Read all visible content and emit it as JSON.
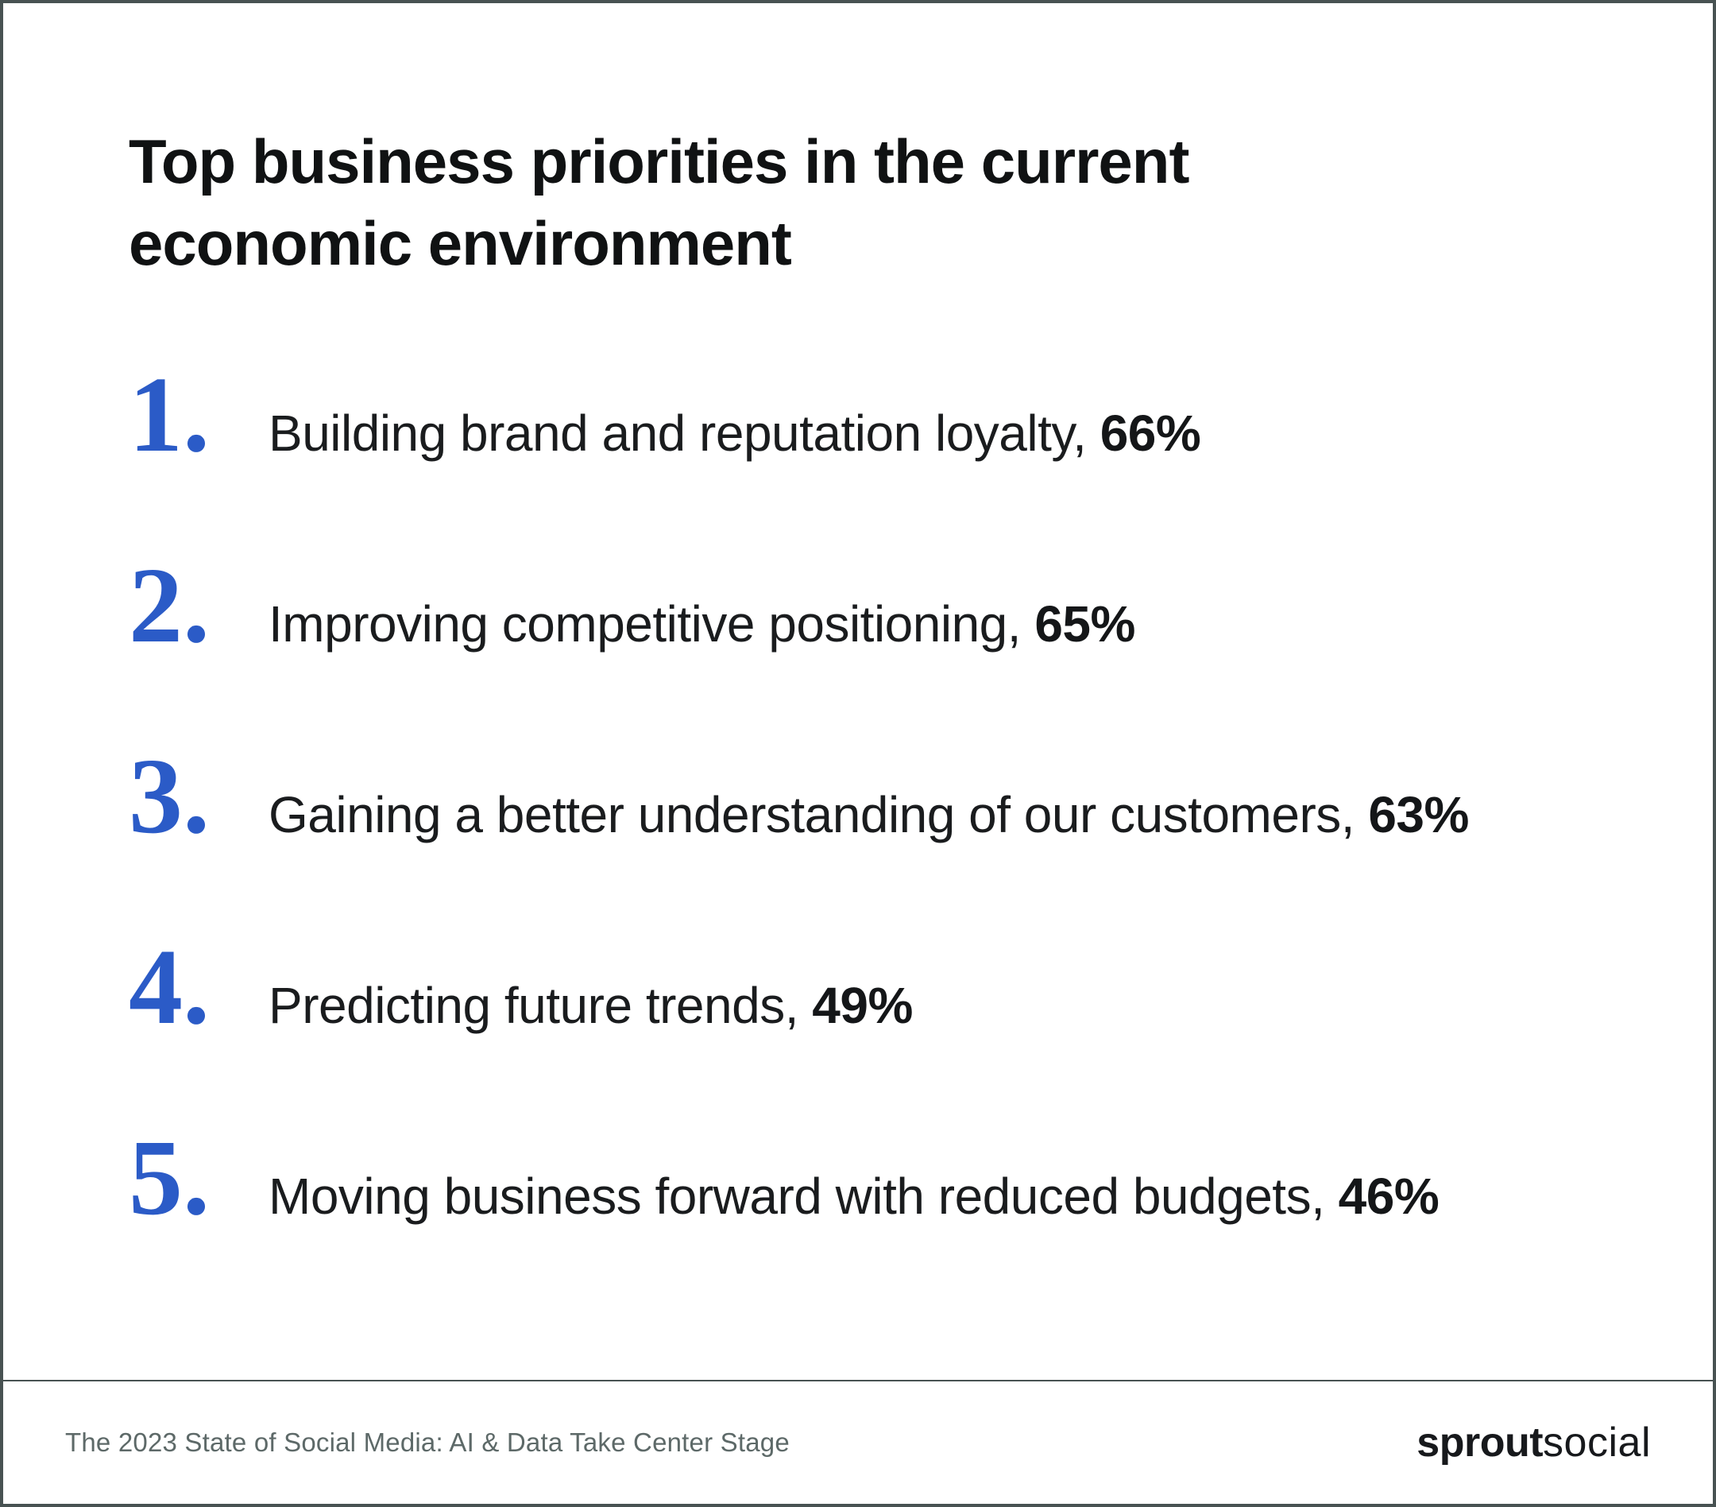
{
  "page": {
    "title": "Top business priorities in the current\neconomic environment"
  },
  "items": [
    {
      "rank": "1.",
      "label": "Building brand and reputation loyalty,",
      "value": "66%"
    },
    {
      "rank": "2.",
      "label": "Improving competitive positioning,",
      "value": "65%"
    },
    {
      "rank": "3.",
      "label": "Gaining a better understanding of our customers,",
      "value": "63%"
    },
    {
      "rank": "4.",
      "label": "Predicting future trends,",
      "value": "49%"
    },
    {
      "rank": "5.",
      "label": "Moving business forward with reduced budgets,",
      "value": "46%"
    }
  ],
  "footer": {
    "source": "The 2023 State of Social Media: AI & Data Take Center Stage",
    "logo_bold": "sprout",
    "logo_light": "social"
  },
  "colors": {
    "accent_blue": "#2B5BC7",
    "body_text": "#1A1C1E",
    "border": "#485252",
    "footer_text": "#5D6968"
  },
  "chart_data": {
    "type": "table",
    "title": "Top business priorities in the current economic environment",
    "categories": [
      "Building brand and reputation loyalty",
      "Improving competitive positioning",
      "Gaining a better understanding of our customers",
      "Predicting future trends",
      "Moving business forward with reduced budgets"
    ],
    "values": [
      66,
      65,
      63,
      49,
      46
    ],
    "unit": "%",
    "legend_position": "none",
    "grid": false,
    "source": "The 2023 State of Social Media: AI & Data Take Center Stage"
  }
}
